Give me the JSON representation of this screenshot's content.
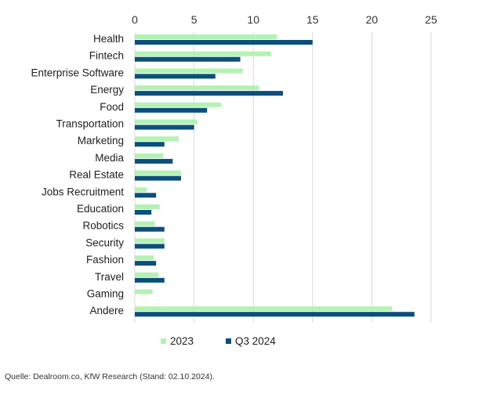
{
  "chart_data": {
    "type": "bar",
    "orientation": "horizontal",
    "categories": [
      "Health",
      "Fintech",
      "Enterprise Software",
      "Energy",
      "Food",
      "Transportation",
      "Marketing",
      "Media",
      "Real Estate",
      "Jobs Recruitment",
      "Education",
      "Robotics",
      "Security",
      "Fashion",
      "Travel",
      "Gaming",
      "Andere"
    ],
    "series": [
      {
        "name": "2023",
        "color": "#b3f2b3",
        "values": [
          12.0,
          11.5,
          9.1,
          10.5,
          7.3,
          5.3,
          3.7,
          2.4,
          3.9,
          1.0,
          2.1,
          1.7,
          2.5,
          1.6,
          2.0,
          1.5,
          21.7
        ]
      },
      {
        "name": "Q3 2024",
        "color": "#0b4f7c",
        "values": [
          15.0,
          8.9,
          6.8,
          12.5,
          6.1,
          5.0,
          2.5,
          3.2,
          3.9,
          1.8,
          1.4,
          2.5,
          2.5,
          1.8,
          2.5,
          0,
          23.6
        ]
      }
    ],
    "xlim": [
      0,
      25
    ],
    "xticks": [
      "0",
      "5",
      "10",
      "15",
      "20",
      "25"
    ],
    "xaxis_position": "top",
    "grid": "vertical",
    "legend_position": "bottom"
  },
  "footer": {
    "source": "Quelle: Dealroom.co, KfW Research (Stand: 02.10.2024)."
  }
}
